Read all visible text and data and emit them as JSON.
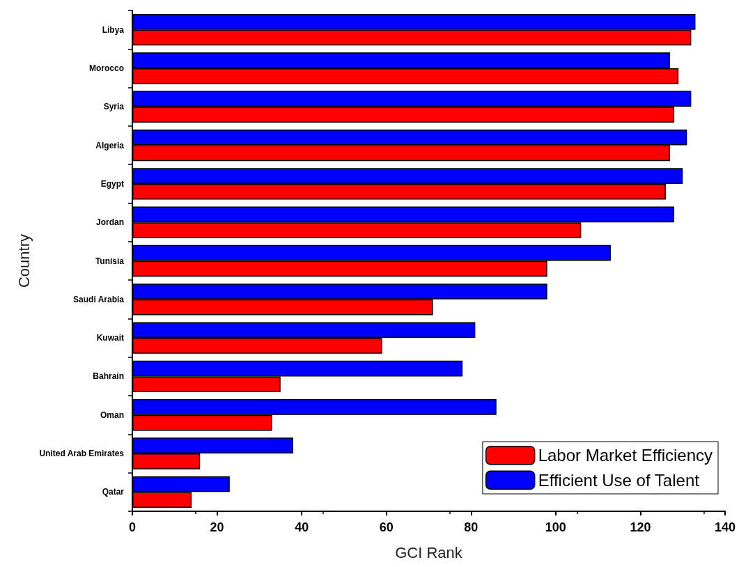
{
  "chart_data": {
    "type": "bar",
    "orientation": "horizontal",
    "xlabel": "GCI Rank",
    "ylabel": "Country",
    "categories": [
      "Libya",
      "Morocco",
      "Syria",
      "Algeria",
      "Egypt",
      "Jordan",
      "Tunisia",
      "Saudi Arabia",
      "Kuwait",
      "Bahrain",
      "Oman",
      "United Arab Emirates",
      "Qatar"
    ],
    "series": [
      {
        "name": "Labor Market Efficiency",
        "color": "#ff0000",
        "values": [
          132,
          129,
          128,
          127,
          126,
          106,
          98,
          71,
          59,
          35,
          33,
          16,
          14
        ]
      },
      {
        "name": "Efficient Use of Talent",
        "color": "#0000ff",
        "values": [
          133,
          127,
          132,
          131,
          130,
          128,
          113,
          98,
          81,
          78,
          86,
          38,
          23
        ]
      }
    ],
    "xlim": [
      0,
      140
    ],
    "xticks": [
      0,
      20,
      40,
      60,
      80,
      100,
      120,
      140
    ],
    "grid": false,
    "legend": "bottom right"
  }
}
